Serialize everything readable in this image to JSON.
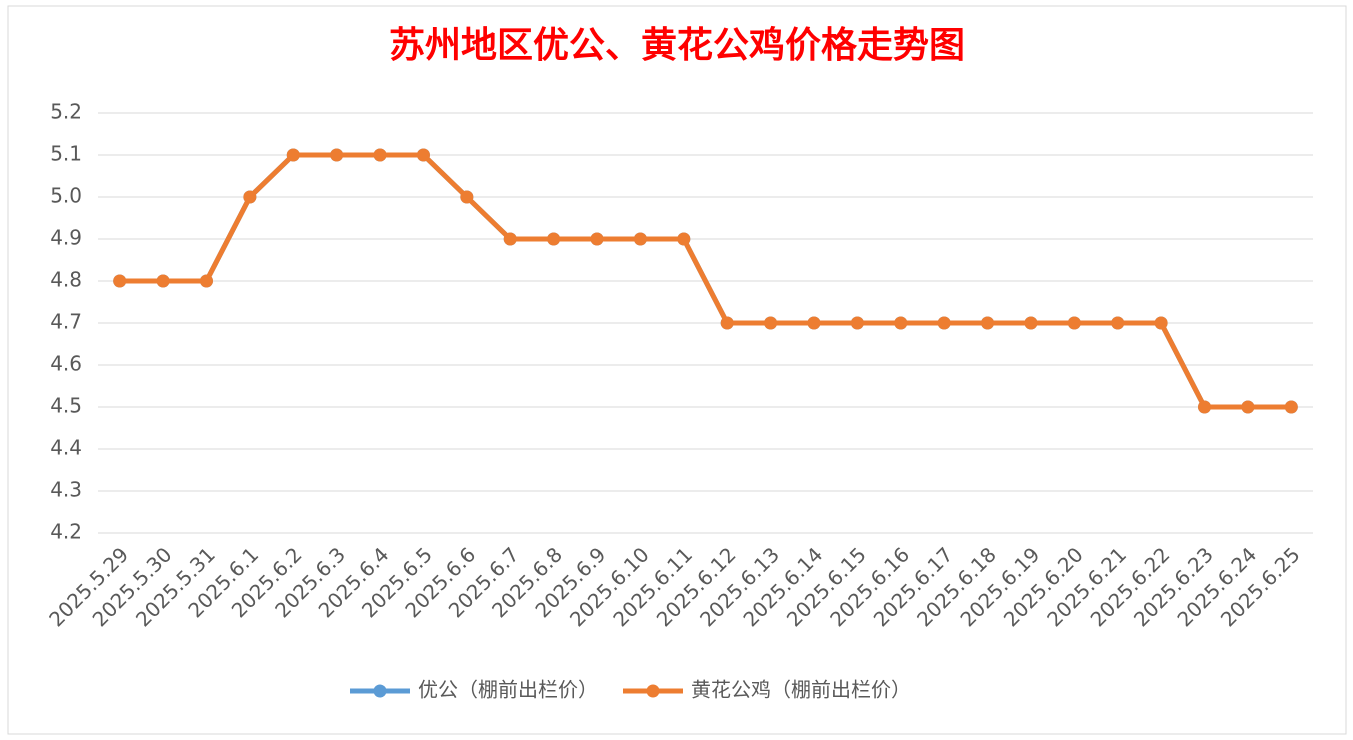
{
  "chart_data": {
    "type": "line",
    "title": "苏州地区优公、黄花公鸡价格走势图",
    "categories": [
      "2025.5.29",
      "2025.5.30",
      "2025.5.31",
      "2025.6.1",
      "2025.6.2",
      "2025.6.3",
      "2025.6.4",
      "2025.6.5",
      "2025.6.6",
      "2025.6.7",
      "2025.6.8",
      "2025.6.9",
      "2025.6.10",
      "2025.6.11",
      "2025.6.12",
      "2025.6.13",
      "2025.6.14",
      "2025.6.15",
      "2025.6.16",
      "2025.6.17",
      "2025.6.18",
      "2025.6.19",
      "2025.6.20",
      "2025.6.21",
      "2025.6.22",
      "2025.6.23",
      "2025.6.24",
      "2025.6.25"
    ],
    "series": [
      {
        "name": "优公（棚前出栏价）",
        "color": "#5b9bd5",
        "values": [
          4.8,
          4.8,
          4.8,
          5.0,
          5.1,
          5.1,
          5.1,
          5.1,
          5.0,
          4.9,
          4.9,
          4.9,
          4.9,
          4.9,
          4.7,
          4.7,
          4.7,
          4.7,
          4.7,
          4.7,
          4.7,
          4.7,
          4.7,
          4.7,
          4.7,
          4.5,
          4.5,
          4.5
        ]
      },
      {
        "name": "黄花公鸡（棚前出栏价）",
        "color": "#ed7d31",
        "values": [
          4.8,
          4.8,
          4.8,
          5.0,
          5.1,
          5.1,
          5.1,
          5.1,
          5.0,
          4.9,
          4.9,
          4.9,
          4.9,
          4.9,
          4.7,
          4.7,
          4.7,
          4.7,
          4.7,
          4.7,
          4.7,
          4.7,
          4.7,
          4.7,
          4.7,
          4.5,
          4.5,
          4.5
        ]
      }
    ],
    "ylim": [
      4.2,
      5.2
    ],
    "yticks": [
      4.2,
      4.3,
      4.4,
      4.5,
      4.6,
      4.7,
      4.8,
      4.9,
      {
        "value": 5,
        "label": "5.0"
      },
      5.1,
      5.2
    ],
    "grid": true,
    "legend": "bottom"
  }
}
